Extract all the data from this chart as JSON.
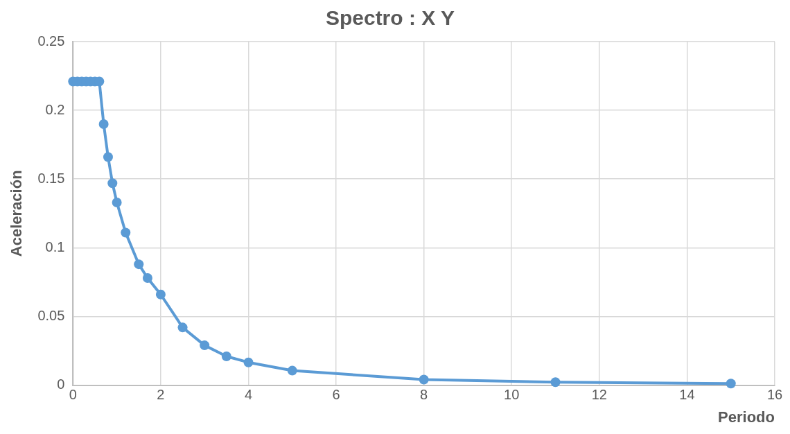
{
  "chart_data": {
    "type": "line",
    "title": "Spectro : X Y",
    "xlabel": "Periodo",
    "ylabel": "Aceleración",
    "x": [
      0,
      0.1,
      0.2,
      0.3,
      0.4,
      0.5,
      0.6,
      0.7,
      0.8,
      0.9,
      1.0,
      1.2,
      1.5,
      1.7,
      2.0,
      2.5,
      3.0,
      3.5,
      4.0,
      5.0,
      8.0,
      11.0,
      15.0
    ],
    "series": [
      {
        "color": "#5b9bd5",
        "values": [
          0.221,
          0.221,
          0.221,
          0.221,
          0.221,
          0.221,
          0.221,
          0.19,
          0.166,
          0.147,
          0.133,
          0.111,
          0.088,
          0.078,
          0.066,
          0.042,
          0.029,
          0.021,
          0.0166,
          0.0106,
          0.0041,
          0.0022,
          0.0012
        ]
      }
    ],
    "xlim": [
      0,
      16
    ],
    "xticks": [
      0,
      2,
      4,
      6,
      8,
      10,
      12,
      14,
      16
    ],
    "ylim": [
      0,
      0.25
    ],
    "yticks": [
      0,
      0.05,
      0.1,
      0.15,
      0.2,
      0.25
    ],
    "grid": true,
    "legend": false,
    "marker": "circle",
    "line_style": "solid"
  }
}
